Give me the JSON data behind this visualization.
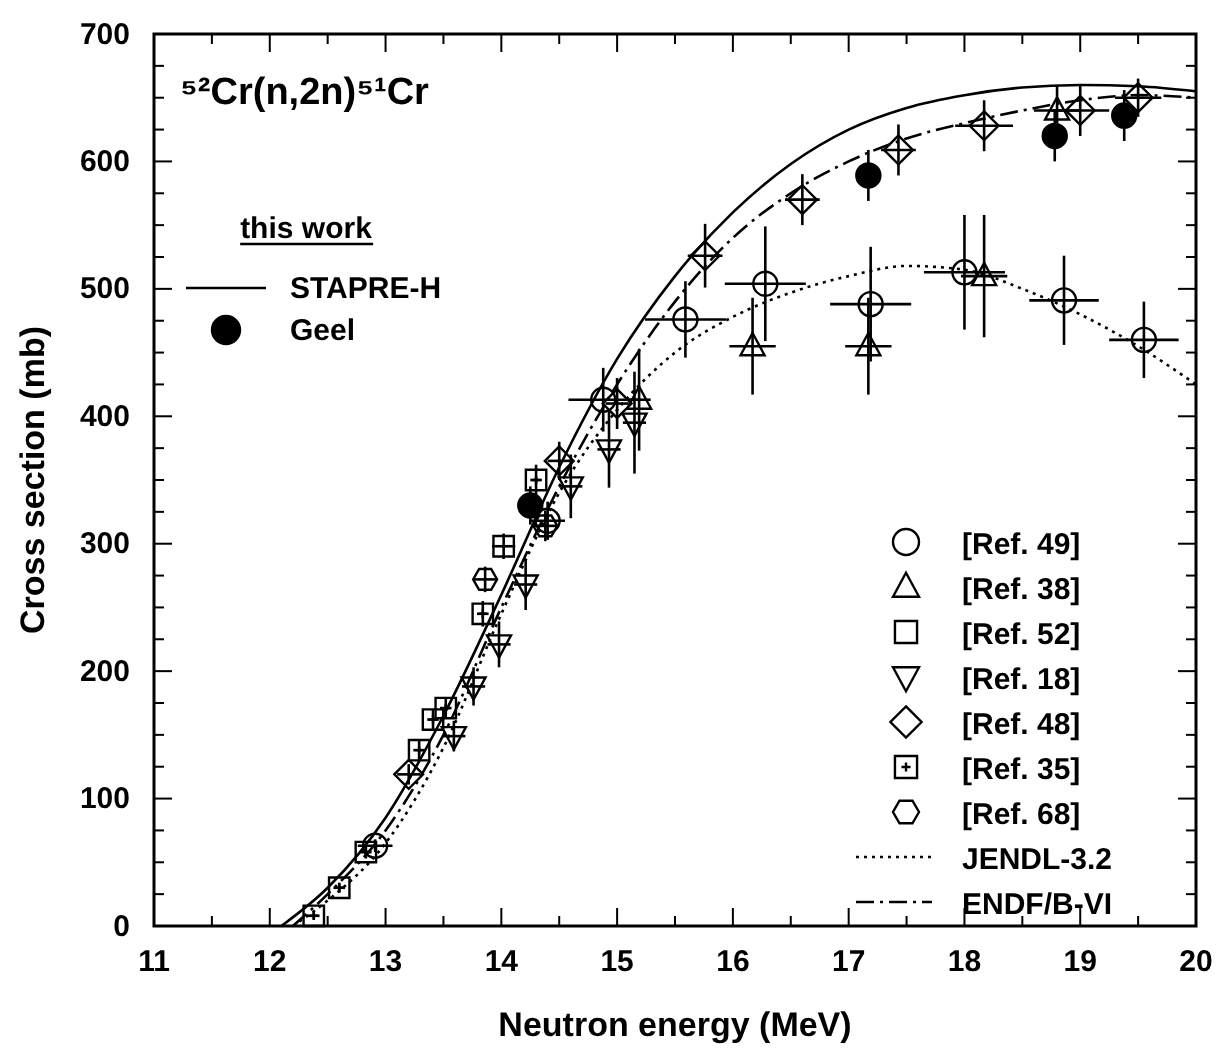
{
  "chart_data": {
    "type": "scatter",
    "title": "⁵²Cr(n,2n)⁵¹Cr",
    "xlabel": "Neutron energy (MeV)",
    "ylabel": "Cross section (mb)",
    "legend_title": "this work",
    "xlim": [
      11,
      20
    ],
    "xticks": [
      11,
      12,
      13,
      14,
      15,
      16,
      17,
      18,
      19,
      20
    ],
    "ylim": [
      0,
      700
    ],
    "yticks": [
      0,
      100,
      200,
      300,
      400,
      500,
      600,
      700
    ],
    "legend": "bottom right",
    "series": [
      {
        "name": "STAPRE-H",
        "type": "line",
        "line_style": "solid",
        "color": "#000000",
        "x": [
          12.1,
          12.5,
          13,
          13.5,
          14,
          14.5,
          15,
          15.5,
          16,
          16.5,
          17,
          17.5,
          18,
          18.5,
          19,
          19.5,
          20
        ],
        "values": [
          0,
          30,
          85,
          165,
          260,
          360,
          445,
          510,
          560,
          598,
          625,
          642,
          652,
          658,
          660,
          659,
          655
        ]
      },
      {
        "name": "Geel",
        "marker": "circle-filled",
        "color": "#000000",
        "x": [
          14.25,
          17.17,
          18.78,
          19.38
        ],
        "values": [
          330,
          589,
          620,
          636
        ],
        "errors": [
          15,
          20,
          20,
          20
        ],
        "xerrors": [
          0.1,
          0.1,
          0.1,
          0.1
        ]
      },
      {
        "name": "[Ref. 49]",
        "marker": "circle",
        "color": "#000000",
        "x": [
          12.91,
          14.4,
          14.88,
          15.59,
          16.28,
          17.19,
          18.0,
          18.86,
          19.55
        ],
        "values": [
          63,
          318,
          413,
          476,
          504,
          488,
          513,
          491,
          460
        ],
        "errors": [
          5,
          15,
          25,
          30,
          45,
          45,
          45,
          35,
          30
        ],
        "xerrors": [
          0.15,
          0.15,
          0.3,
          0.35,
          0.35,
          0.35,
          0.35,
          0.3,
          0.3
        ]
      },
      {
        "name": "[Ref. 38]",
        "marker": "triangle",
        "color": "#000000",
        "x": [
          15.19,
          16.17,
          17.17,
          18.17,
          18.8
        ],
        "values": [
          413,
          455,
          455,
          510,
          640
        ],
        "errors": [
          40,
          38,
          38,
          48,
          20
        ],
        "xerrors": [
          0.1,
          0.2,
          0.2,
          0.2,
          0.2
        ]
      },
      {
        "name": "[Ref. 52]",
        "marker": "square",
        "color": "#000000",
        "x": [
          14.02
        ],
        "values": [
          298
        ],
        "errors": [
          10
        ],
        "xerrors": [
          0.1
        ]
      },
      {
        "name": "[Ref. 18]",
        "marker": "triangle-down",
        "color": "#000000",
        "x": [
          13.59,
          13.76,
          13.98,
          14.21,
          14.6,
          14.93,
          15.15
        ],
        "values": [
          149,
          188,
          221,
          268,
          345,
          374,
          395
        ],
        "errors": [
          12,
          15,
          18,
          20,
          25,
          30,
          40
        ],
        "xerrors": [
          0.1,
          0.1,
          0.1,
          0.1,
          0.1,
          0.1,
          0.1
        ]
      },
      {
        "name": "[Ref. 48]",
        "marker": "diamond",
        "color": "#000000",
        "x": [
          13.2,
          14.5,
          15.0,
          15.76,
          16.6,
          17.43,
          18.17,
          19.0,
          19.5
        ],
        "values": [
          119,
          365,
          410,
          526,
          570,
          609,
          628,
          640,
          650
        ],
        "errors": [
          8,
          15,
          20,
          25,
          20,
          20,
          20,
          20,
          15
        ],
        "xerrors": [
          0.1,
          0.1,
          0.1,
          0.15,
          0.15,
          0.15,
          0.25,
          0.25,
          0.2
        ]
      },
      {
        "name": "[Ref. 35]",
        "color": "#000000",
        "x": [
          12.38,
          12.6,
          12.83,
          13.29,
          13.41,
          13.52,
          13.84,
          14.3
        ],
        "values": [
          8,
          30,
          58,
          138,
          162,
          171,
          245,
          350
        ],
        "errors": [
          3,
          4,
          5,
          8,
          8,
          8,
          10,
          12
        ],
        "xerrors": [
          0.05,
          0.05,
          0.05,
          0.05,
          0.05,
          0.05,
          0.05,
          0.05
        ]
      },
      {
        "name": "[Ref. 68]",
        "color": "#000000",
        "x": [
          13.86,
          14.38
        ],
        "values": [
          272,
          314
        ],
        "errors": [
          10,
          12
        ],
        "xerrors": [
          0.1,
          0.1
        ]
      },
      {
        "name": "JENDL-3.2",
        "type": "line",
        "line_style": "dotted",
        "color": "#000000",
        "x": [
          12.2,
          12.5,
          13,
          13.5,
          14,
          14.5,
          15,
          15.5,
          16,
          16.5,
          17,
          17.5,
          18,
          18.5,
          19,
          19.5,
          20
        ],
        "values": [
          0,
          20,
          65,
          140,
          245,
          340,
          405,
          450,
          478,
          497,
          510,
          518,
          515,
          500,
          480,
          455,
          425
        ]
      },
      {
        "name": "ENDF/B-VI",
        "type": "line",
        "line_style": "dashdot",
        "color": "#000000",
        "x": [
          12.2,
          12.5,
          13,
          13.5,
          14,
          14.5,
          15,
          15.5,
          16,
          16.5,
          17,
          17.5,
          18,
          18.5,
          19,
          19.5,
          20
        ],
        "values": [
          0,
          25,
          75,
          150,
          250,
          345,
          425,
          490,
          540,
          575,
          600,
          618,
          630,
          640,
          648,
          652,
          650
        ]
      }
    ]
  }
}
